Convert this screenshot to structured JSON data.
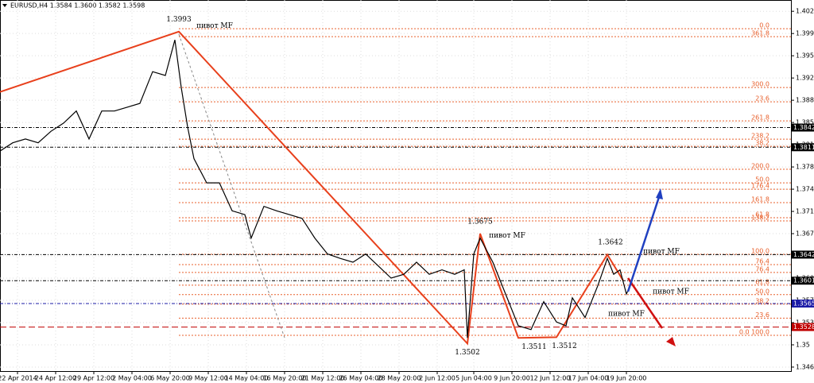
{
  "chart_data": {
    "type": "line",
    "title": "EURUSD,H4 1.3584 1.3600 1.3582 1.3598",
    "xlim": [
      0,
      248.75
    ],
    "ylim": [
      1.34587,
      1.404275
    ],
    "grid": true,
    "xticks": [
      {
        "value": 5.5,
        "label": "22 Apr 2014"
      },
      {
        "value": 17.5,
        "label": "24 Apr 12:00"
      },
      {
        "value": 29.5,
        "label": "29 Apr 12:00"
      },
      {
        "value": 41.5,
        "label": "2 May 04:00"
      },
      {
        "value": 53.5,
        "label": "6 May 20:00"
      },
      {
        "value": 65.5,
        "label": "9 May 12:00"
      },
      {
        "value": 77.5,
        "label": "14 May 04:00"
      },
      {
        "value": 89.5,
        "label": "16 May 20:00"
      },
      {
        "value": 101.5,
        "label": "21 May 12:00"
      },
      {
        "value": 113.5,
        "label": "26 May 04:00"
      },
      {
        "value": 125.5,
        "label": "28 May 20:00"
      },
      {
        "value": 137.5,
        "label": "2 Jun 12:00"
      },
      {
        "value": 149,
        "label": "5 Jun 04:00"
      },
      {
        "value": 161,
        "label": "9 Jun 20:00"
      },
      {
        "value": 173,
        "label": "12 Jun 12:00"
      },
      {
        "value": 185,
        "label": "17 Jun 04:00"
      },
      {
        "value": 197,
        "label": "19 Jun 20:00"
      }
    ],
    "yticks": [
      1.4025,
      1.399,
      1.3955,
      1.392,
      1.3885,
      1.385,
      1.3815,
      1.378,
      1.3745,
      1.371,
      1.3675,
      1.364,
      1.3605,
      1.357,
      1.3535,
      1.35,
      1.3465
    ],
    "series": [
      {
        "name": "EURUSD,H4",
        "color": "#000000",
        "x": [
          0,
          4,
          8,
          12,
          16,
          20,
          24,
          28,
          32,
          36,
          40,
          44,
          48,
          52,
          55,
          57,
          59,
          61,
          65,
          69,
          73,
          77,
          79,
          83,
          87,
          91,
          95,
          99,
          103,
          107,
          111,
          115,
          119,
          123,
          127,
          131,
          135,
          139,
          143,
          146,
          147,
          149,
          151,
          155,
          159,
          163,
          167,
          171,
          175,
          178,
          180,
          184,
          188,
          191,
          193,
          195,
          197,
          198.75
        ],
        "values": [
          1.3805,
          1.3818,
          1.3824,
          1.3818,
          1.3836,
          1.3849,
          1.3868,
          1.3824,
          1.3868,
          1.3868,
          1.3874,
          1.388,
          1.393,
          1.3924,
          1.398,
          1.3905,
          1.3843,
          1.3793,
          1.3755,
          1.3755,
          1.3711,
          1.3705,
          1.3668,
          1.3718,
          1.3711,
          1.3705,
          1.3699,
          1.3668,
          1.3643,
          1.3636,
          1.363,
          1.3643,
          1.3624,
          1.3605,
          1.3611,
          1.363,
          1.3611,
          1.3618,
          1.3611,
          1.3618,
          1.3511,
          1.3643,
          1.3668,
          1.363,
          1.358,
          1.353,
          1.3524,
          1.3568,
          1.3536,
          1.353,
          1.3574,
          1.3543,
          1.3593,
          1.3636,
          1.3611,
          1.3618,
          1.358,
          1.3599
        ]
      }
    ],
    "zigzag": {
      "color": "#e8401c",
      "x": [
        0,
        56.25,
        147,
        151,
        163,
        175,
        191,
        196
      ],
      "values": [
        1.3898,
        1.3993,
        1.3502,
        1.3675,
        1.3511,
        1.3512,
        1.3642,
        1.3601
      ]
    },
    "levels": [
      {
        "value": 1.3842,
        "color": "#000000"
      },
      {
        "value": 1.3811,
        "color": "#000000"
      },
      {
        "value": 1.3642,
        "color": "#000000"
      },
      {
        "value": 1.3601,
        "color": "#000000"
      },
      {
        "value": 1.3565,
        "color": "#1a1aa6"
      },
      {
        "value": 1.3528,
        "color": "#c00000"
      }
    ],
    "fib_levels": [
      {
        "label": "0.0",
        "value": 1.39975
      },
      {
        "label": "361.8",
        "value": 1.3985
      },
      {
        "label": "300.0",
        "value": 1.3905
      },
      {
        "label": "23.6",
        "value": 1.38825
      },
      {
        "label": "261.8",
        "value": 1.38525
      },
      {
        "label": "238.2",
        "value": 1.38238
      },
      {
        "label": "38.2",
        "value": 1.38125
      },
      {
        "label": "200.0",
        "value": 1.37763
      },
      {
        "label": "50.0",
        "value": 1.3755
      },
      {
        "label": "176.4",
        "value": 1.3745
      },
      {
        "label": "161.8",
        "value": 1.37238
      },
      {
        "label": "61.8",
        "value": 1.37
      },
      {
        "label": "138.2",
        "value": 1.3695
      },
      {
        "label": "100.0",
        "value": 1.36425
      },
      {
        "label": "76.4",
        "value": 1.36263
      },
      {
        "label": "76.4",
        "value": 1.3614
      },
      {
        "label": "61.8",
        "value": 1.3594
      },
      {
        "label": "50.0",
        "value": 1.3579
      },
      {
        "label": "38.2",
        "value": 1.3564
      },
      {
        "label": "23.6",
        "value": 1.3542
      },
      {
        "label": "0.0  100.0",
        "value": 1.3515
      }
    ],
    "annotations": [
      {
        "text": "1.3993",
        "x": 56.25,
        "y": 1.4012
      },
      {
        "text": "1.3675",
        "x": 151,
        "y": 1.3694
      },
      {
        "text": "1.3642",
        "x": 192,
        "y": 1.3661
      },
      {
        "text": "1.3502",
        "x": 147,
        "y": 1.3488
      },
      {
        "text": "1.3511",
        "x": 168,
        "y": 1.3497
      },
      {
        "text": "1.3512",
        "x": 177.5,
        "y": 1.3498
      },
      {
        "text": "пивот MF",
        "x": 67.5,
        "y": 1.4002
      },
      {
        "text": "пивот MF",
        "x": 159.5,
        "y": 1.3672
      },
      {
        "text": "пивот MF",
        "x": 208,
        "y": 1.3647
      },
      {
        "text": "пивот MF",
        "x": 211,
        "y": 1.3584
      },
      {
        "text": "пивот MF",
        "x": 197,
        "y": 1.3549
      }
    ]
  }
}
